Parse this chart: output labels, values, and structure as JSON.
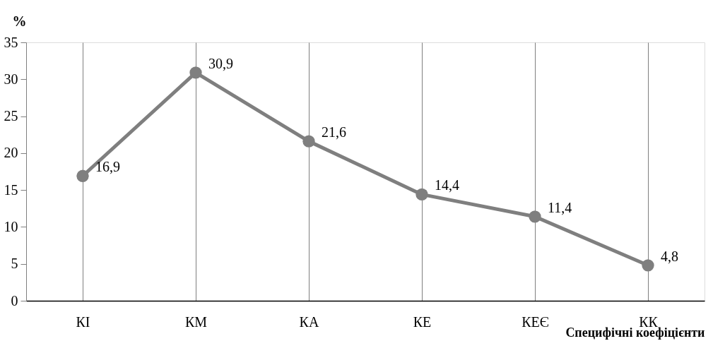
{
  "chart_data": {
    "type": "line",
    "ylabel": "%",
    "xlabel": "Специфічні коефіцієнти",
    "categories": [
      "КІ",
      "КМ",
      "КА",
      "КЕ",
      "КЕЄ",
      "КК"
    ],
    "series": [
      {
        "color": "#7f7f7f",
        "values": [
          16.9,
          30.9,
          21.6,
          14.4,
          11.4,
          4.8
        ],
        "value_labels": [
          "16,9",
          "30,9",
          "21,6",
          "14,4",
          "11,4",
          "4,8"
        ]
      }
    ],
    "ylim": [
      0,
      35
    ],
    "yticks": [
      0,
      5,
      10,
      15,
      20,
      25,
      30,
      35
    ],
    "grid": "x",
    "legend": false,
    "marker": "circle",
    "line_style": "solid"
  }
}
